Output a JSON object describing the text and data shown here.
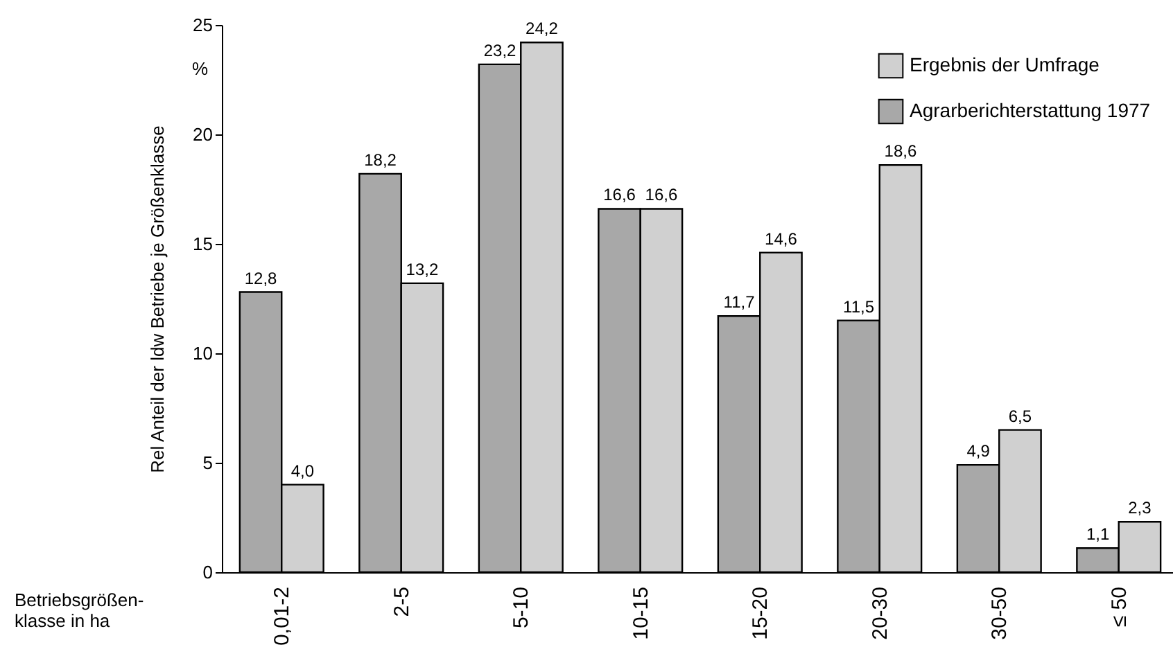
{
  "chart_data": {
    "type": "bar",
    "ylabel": "Rel Anteil der ldw Betriebe je Größenklasse",
    "xlabel": "Betriebsgrößen-\nklasse in ha",
    "annotations": [
      "%"
    ],
    "categories": [
      "0,01-2",
      "2-5",
      "5-10",
      "10-15",
      "15-20",
      "20-30",
      "30-50",
      "≤ 50"
    ],
    "series": [
      {
        "name": "Agrarberichterstattung 1977",
        "color": "#a8a8a8",
        "values": [
          12.8,
          18.2,
          23.2,
          16.6,
          11.7,
          11.5,
          4.9,
          1.1
        ],
        "value_labels": [
          "12,8",
          "18,2",
          "23,2",
          "16,6",
          "11,7",
          "11,5",
          "4,9",
          "1,1"
        ]
      },
      {
        "name": "Ergebnis der Umfrage",
        "color": "#d0d0d0",
        "values": [
          4.0,
          13.2,
          24.2,
          16.6,
          14.6,
          18.6,
          6.5,
          2.3
        ],
        "value_labels": [
          "4,0",
          "13,2",
          "24,2",
          "16,6",
          "14,6",
          "18,6",
          "6,5",
          "2,3"
        ]
      }
    ],
    "ylim": [
      0,
      25
    ],
    "yticks": [
      0,
      5,
      10,
      15,
      20,
      25
    ],
    "grid": false,
    "legend": "top right"
  }
}
